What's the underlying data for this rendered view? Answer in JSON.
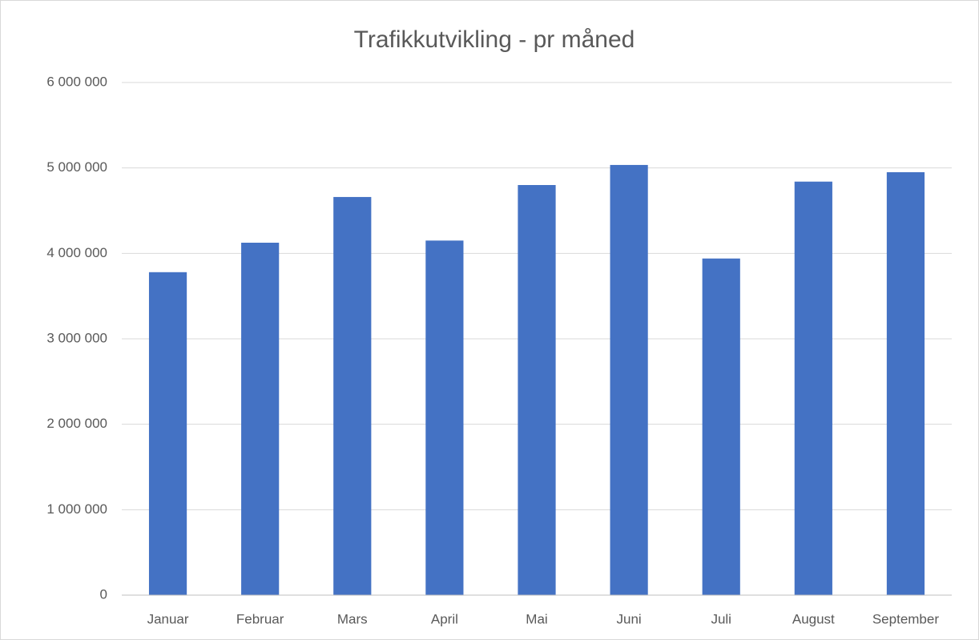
{
  "chart_data": {
    "type": "bar",
    "title": "Trafikkutvikling - pr måned",
    "categories": [
      "Januar",
      "Februar",
      "Mars",
      "April",
      "Mai",
      "Juni",
      "Juli",
      "August",
      "September"
    ],
    "values": [
      3780000,
      4125000,
      4660000,
      4150000,
      4800000,
      5035000,
      3940000,
      4840000,
      4950000
    ],
    "color": "#4472c4",
    "ylim": [
      0,
      6000000
    ],
    "yticks": [
      0,
      {
        "value": 1000000,
        "label": "1 000 000"
      },
      {
        "value": 2000000,
        "label": "2 000 000"
      },
      {
        "value": 3000000,
        "label": "3 000 000"
      },
      {
        "value": 4000000,
        "label": "4 000 000"
      },
      {
        "value": 5000000,
        "label": "5 000 000"
      },
      {
        "value": 6000000,
        "label": "6 000 000"
      }
    ],
    "grid": true
  }
}
